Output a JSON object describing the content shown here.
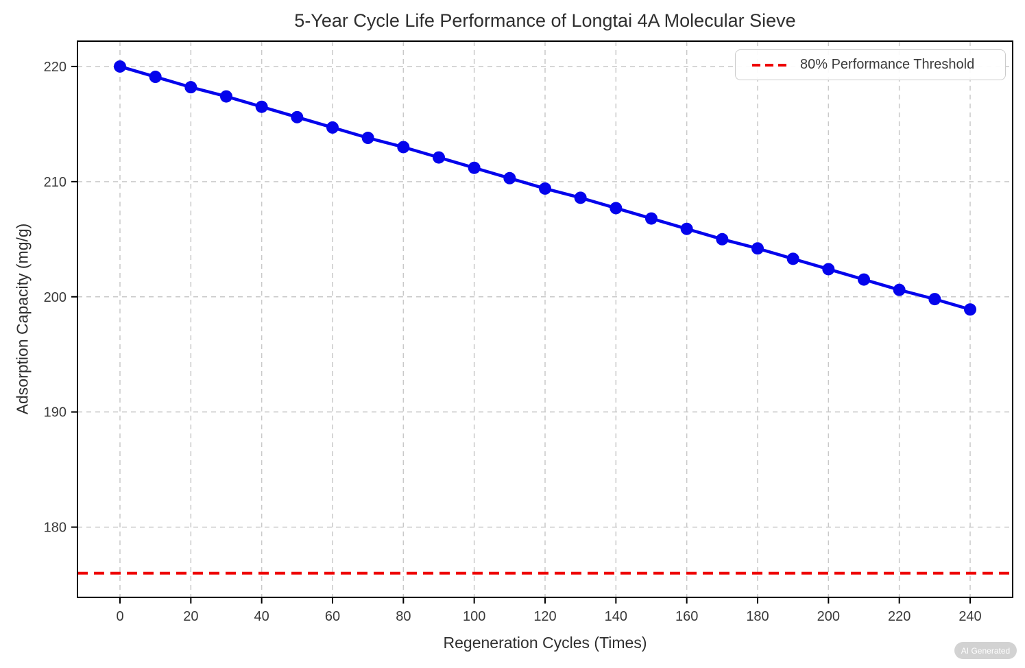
{
  "figure": {
    "badge_label": "AI Generated"
  },
  "chart_data": {
    "type": "line",
    "title": "5-Year Cycle Life Performance of Longtai 4A Molecular Sieve",
    "xlabel": "Regeneration Cycles (Times)",
    "ylabel": "Adsorption Capacity (mg/g)",
    "x": [
      0,
      10,
      20,
      30,
      40,
      50,
      60,
      70,
      80,
      90,
      100,
      110,
      120,
      130,
      140,
      150,
      160,
      170,
      180,
      190,
      200,
      210,
      220,
      230,
      240
    ],
    "series": [
      {
        "color": "#0404ec",
        "marker": "circle",
        "values": [
          220.0,
          219.1,
          218.2,
          217.4,
          216.5,
          215.6,
          214.7,
          213.8,
          213.0,
          212.1,
          211.2,
          210.3,
          209.4,
          208.6,
          207.7,
          206.8,
          205.9,
          205.0,
          204.2,
          203.3,
          202.4,
          201.5,
          200.6,
          199.8,
          198.9
        ]
      }
    ],
    "threshold_line": {
      "label": "80% Performance Threshold",
      "value": 176,
      "color": "#ee0000",
      "style": "dashed"
    },
    "xticks": [
      0,
      20,
      40,
      60,
      80,
      100,
      120,
      140,
      160,
      180,
      200,
      220,
      240
    ],
    "yticks": [
      180,
      190,
      200,
      210,
      220
    ],
    "xlim": [
      -12,
      252
    ],
    "ylim": [
      173.9,
      222.2
    ],
    "grid": true,
    "grid_color": "#c9c9c9",
    "legend_position": "upper right",
    "axis_text_color": "#3a3a3a",
    "spine_color": "#000000",
    "background": "#ffffff"
  }
}
